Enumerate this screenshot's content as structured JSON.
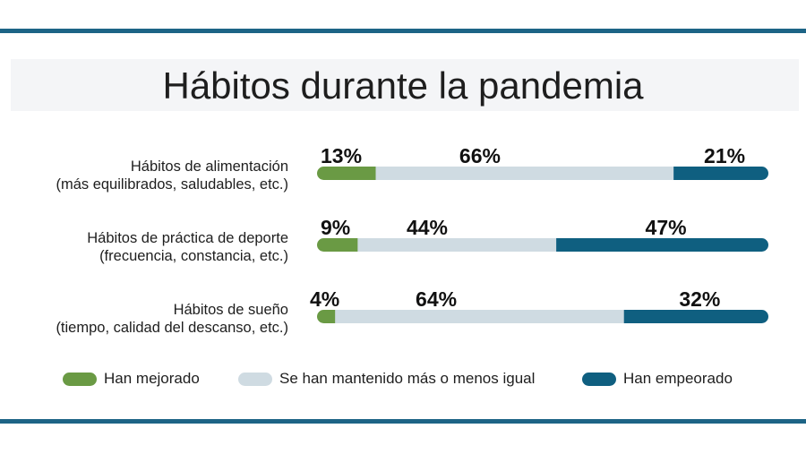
{
  "title": "Hábitos durante la pandemia",
  "colors": {
    "rule": "#1d6486",
    "improved": "#6a9a44",
    "same": "#cfdbe2",
    "worse": "#0f5f80"
  },
  "chart_data": {
    "type": "bar",
    "orientation": "horizontal",
    "stacked": true,
    "title": "Hábitos durante la pandemia",
    "categories": [
      {
        "line1": "Hábitos de alimentación",
        "line2": "(más equilibrados, saludables, etc.)"
      },
      {
        "line1": "Hábitos de práctica de deporte",
        "line2": "(frecuencia, constancia, etc.)"
      },
      {
        "line1": "Hábitos de sueño",
        "line2": "(tiempo, calidad del descanso, etc.)"
      }
    ],
    "series": [
      {
        "name": "Han mejorado",
        "values": [
          13,
          9,
          4
        ],
        "labels": [
          "13%",
          "9%",
          "4%"
        ]
      },
      {
        "name": "Se han mantenido más o menos igual",
        "values": [
          66,
          44,
          64
        ],
        "labels": [
          "66%",
          "44%",
          "64%"
        ]
      },
      {
        "name": "Han empeorado",
        "values": [
          21,
          47,
          32
        ],
        "labels": [
          "21%",
          "47%",
          "32%"
        ]
      }
    ],
    "xlim": [
      0,
      100
    ],
    "legend_position": "bottom",
    "grid": false
  }
}
